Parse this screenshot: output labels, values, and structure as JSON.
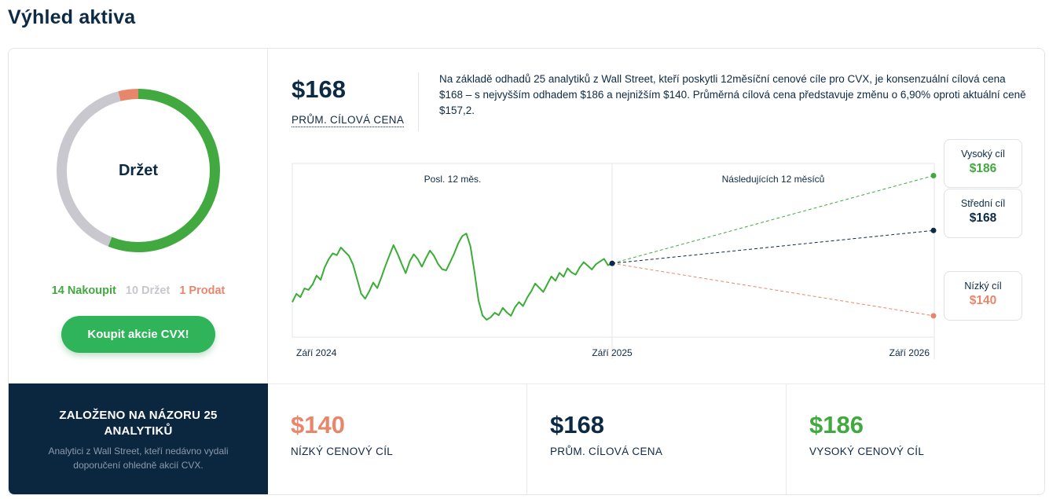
{
  "page": {
    "title": "Výhled aktiva"
  },
  "consensus": {
    "rating": "Držet",
    "buy_label": "14 Nakoupit",
    "hold_label": "10 Držet",
    "sell_label": "1 Prodat",
    "buy_count": 14,
    "hold_count": 10,
    "sell_count": 1,
    "buy_button": "Koupit akcie CVX!",
    "colors": {
      "buy": "#41a93f",
      "hold": "#c9c8ce",
      "sell": "#e8866c"
    }
  },
  "summary": {
    "avg_price": "$168",
    "avg_label": "PRŮM. CÍLOVÁ CENA",
    "description": "Na základě odhadů 25 analytiků z Wall Street, kteří poskytli 12měsíční cenové cíle pro CVX, je konsenzuální cílová cena $168 – s nejvyšším odhadem $186 a nejnižším $140. Průměrná cílová cena představuje změnu o 6,90% oproti aktuální ceně $157,2."
  },
  "chart_data": {
    "type": "line",
    "past_label": "Posl. 12 měs.",
    "future_label": "Následujících 12 měsíců",
    "x_ticks": [
      "Září 2024",
      "Září 2025",
      "Září 2026"
    ],
    "ylim": [
      133,
      190
    ],
    "current_price": 157.2,
    "price_history": [
      144.5,
      147.2,
      146.1,
      149.0,
      148.5,
      150.3,
      153.2,
      151.8,
      155.9,
      158.6,
      160.5,
      159.9,
      162.4,
      161.0,
      159.7,
      156.8,
      152.1,
      147.3,
      145.6,
      148.0,
      150.9,
      149.1,
      152.6,
      156.4,
      159.8,
      163.2,
      160.4,
      157.1,
      154.0,
      157.8,
      160.2,
      158.6,
      156.1,
      158.9,
      161.4,
      159.7,
      157.0,
      155.3,
      154.9,
      157.6,
      160.5,
      163.8,
      166.2,
      167.0,
      162.8,
      154.5,
      145.0,
      140.1,
      138.7,
      139.5,
      141.0,
      140.2,
      142.6,
      141.1,
      140.0,
      142.8,
      144.5,
      143.2,
      145.9,
      148.0,
      150.6,
      149.2,
      147.8,
      150.4,
      152.9,
      151.5,
      154.1,
      152.8,
      155.6,
      154.2,
      153.5,
      155.9,
      157.6,
      156.4,
      155.2,
      156.9,
      157.8,
      158.7,
      156.6,
      157.2
    ],
    "targets": {
      "high": {
        "label": "Vysoký cíl",
        "value": 186,
        "display": "$186",
        "color": "#41a93f"
      },
      "mid": {
        "label": "Střední cíl",
        "value": 168,
        "display": "$168",
        "color": "#0d2a45"
      },
      "low": {
        "label": "Nízký cíl",
        "value": 140,
        "display": "$140",
        "color": "#e8866c"
      }
    },
    "line_color": "#3aad36"
  },
  "footer": {
    "title": "ZALOŽENO NA NÁZORU 25 ANALYTIKŮ",
    "subtitle": "Analytici z Wall Street, kteří nedávno vydali doporučení ohledně akcií CVX.",
    "low_value": "$140",
    "low_label": "NÍZKÝ CENOVÝ CÍL",
    "avg_value": "$168",
    "avg_label": "PRŮM. CÍLOVÁ CENA",
    "high_value": "$186",
    "high_label": "VYSOKÝ CENOVÝ CÍL"
  }
}
